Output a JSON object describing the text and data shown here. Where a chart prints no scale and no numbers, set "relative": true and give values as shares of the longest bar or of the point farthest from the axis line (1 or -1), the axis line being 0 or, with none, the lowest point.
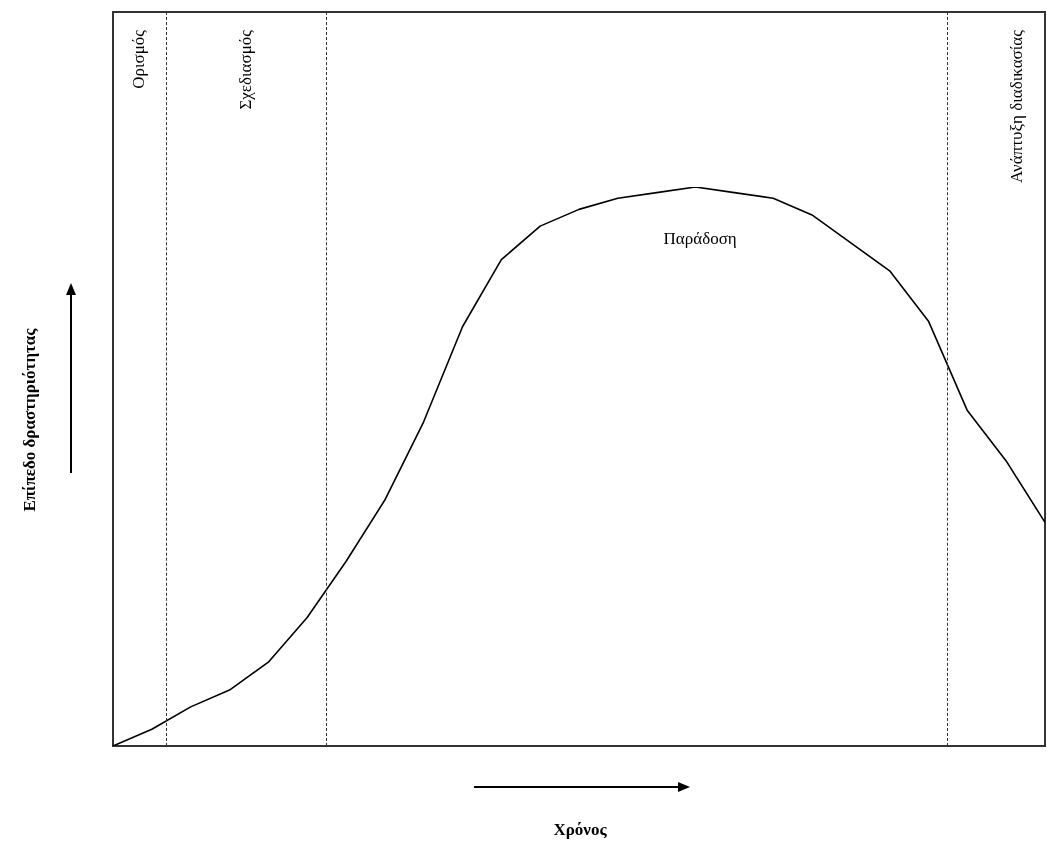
{
  "chart_data": {
    "type": "line",
    "xlabel": "Χρόνος",
    "ylabel": "Επίπεδο δραστηριότητας",
    "relative": true,
    "tick_labels": false,
    "marker": "none",
    "color": "#000000",
    "categories": [
      null,
      null,
      null,
      null,
      null,
      null,
      null,
      null,
      null,
      null,
      null,
      null,
      null,
      null,
      null,
      null,
      null,
      null,
      null,
      null,
      null,
      null,
      null,
      null,
      null
    ],
    "values": [
      0,
      0.03,
      0.07,
      0.1,
      0.15,
      0.23,
      0.33,
      0.44,
      0.58,
      0.75,
      0.87,
      0.93,
      0.96,
      0.98,
      0.99,
      1,
      0.99,
      0.98,
      0.95,
      0.9,
      0.85,
      0.76,
      0.6,
      0.51,
      0.4
    ],
    "annotations": [
      "Ορισμός",
      "Σχεδιασμός",
      "Παράδοση",
      "Ανάπτυξη διαδικασίας"
    ]
  }
}
